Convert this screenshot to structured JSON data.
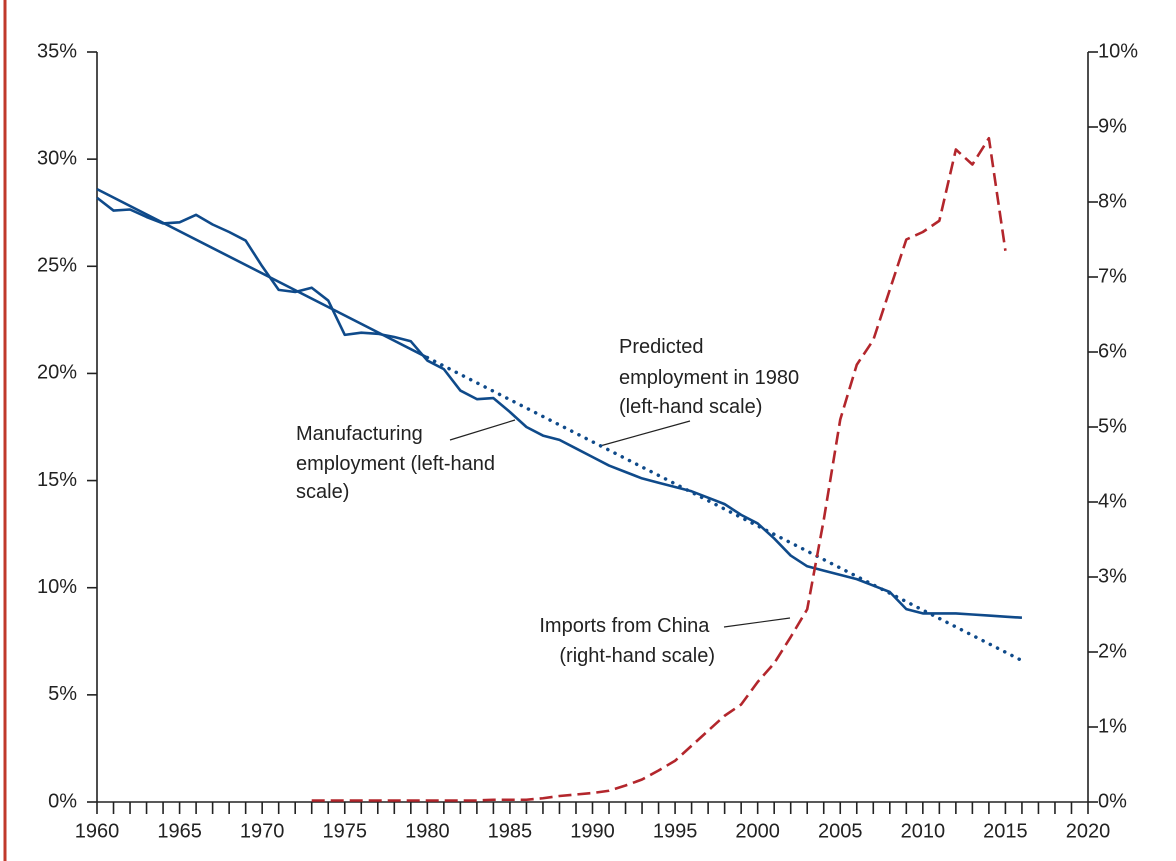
{
  "chart_data": {
    "type": "line",
    "annotations": [
      [
        "Manufacturing",
        "employment (left-hand",
        "scale)"
      ],
      [
        "Predicted",
        "employment in 1980",
        "(left-hand scale)"
      ],
      [
        "Imports from China",
        "(right-hand scale)"
      ]
    ],
    "series": [
      {
        "color": "#0f4a8a",
        "dash": "solid",
        "axis": "y",
        "x": [
          1960,
          1961,
          1962,
          1963,
          1964,
          1965,
          1966,
          1967,
          1968,
          1969,
          1970,
          1971,
          1972,
          1973,
          1974,
          1975,
          1976,
          1977,
          1978,
          1979,
          1980,
          1981,
          1982,
          1983,
          1984,
          1985,
          1986,
          1987,
          1988,
          1989,
          1990,
          1991,
          1992,
          1993,
          1994,
          1995,
          1996,
          1997,
          1998,
          1999,
          2000,
          2001,
          2002,
          2003,
          2004,
          2005,
          2006,
          2007,
          2008,
          2009,
          2010,
          2011,
          2012,
          2013,
          2014,
          2015,
          2016
        ],
        "values": [
          28.2,
          27.6,
          27.65,
          27.3,
          27.0,
          27.05,
          27.4,
          26.95,
          26.6,
          26.2,
          25.0,
          23.9,
          23.8,
          24.0,
          23.4,
          21.8,
          21.9,
          21.85,
          21.7,
          21.5,
          20.6,
          20.2,
          19.2,
          18.8,
          18.85,
          18.2,
          17.5,
          17.1,
          16.9,
          16.5,
          16.1,
          15.7,
          15.4,
          15.1,
          14.9,
          14.7,
          14.5,
          14.2,
          13.9,
          13.4,
          13.0,
          12.3,
          11.5,
          11.0,
          10.8,
          10.6,
          10.4,
          10.1,
          9.8,
          9.0,
          8.8,
          8.8,
          8.8,
          8.75,
          8.7,
          8.65,
          8.6
        ]
      },
      {
        "color": "#0f4a8a",
        "dash": "solid",
        "axis": "y",
        "x": [
          1960,
          1980
        ],
        "values": [
          28.6,
          20.74
        ]
      },
      {
        "color": "#0f4a8a",
        "dash": "dotted",
        "axis": "y",
        "x": [
          1980,
          2016
        ],
        "values": [
          20.74,
          6.6
        ]
      },
      {
        "color": "#b3262c",
        "dash": "dashed",
        "axis": "y2",
        "x": [
          1973,
          1974,
          1975,
          1976,
          1977,
          1978,
          1979,
          1980,
          1981,
          1982,
          1983,
          1984,
          1985,
          1986,
          1987,
          1988,
          1989,
          1990,
          1991,
          1992,
          1993,
          1994,
          1995,
          1996,
          1997,
          1998,
          1999,
          2000,
          2001,
          2002,
          2003,
          2004,
          2005,
          2006,
          2007,
          2008,
          2009,
          2010,
          2011,
          2012,
          2013,
          2014,
          2015
        ],
        "values": [
          0.02,
          0.02,
          0.02,
          0.02,
          0.02,
          0.02,
          0.02,
          0.02,
          0.02,
          0.02,
          0.02,
          0.03,
          0.03,
          0.03,
          0.05,
          0.08,
          0.1,
          0.12,
          0.15,
          0.22,
          0.3,
          0.42,
          0.55,
          0.75,
          0.95,
          1.15,
          1.3,
          1.6,
          1.85,
          2.2,
          2.57,
          3.76,
          5.1,
          5.83,
          6.16,
          6.83,
          7.5,
          7.6,
          7.75,
          8.7,
          8.5,
          8.85,
          7.35
        ]
      }
    ],
    "xlim": [
      1960,
      2020
    ],
    "xticks": [
      1960,
      1965,
      1970,
      1975,
      1980,
      1985,
      1990,
      1995,
      2000,
      2005,
      2010,
      2015,
      2020
    ],
    "ylim": [
      0,
      35
    ],
    "yticks": [
      {
        "value": 0,
        "label": "0%"
      },
      {
        "value": 5,
        "label": "5%"
      },
      {
        "value": 10,
        "label": "10%"
      },
      {
        "value": 15,
        "label": "15%"
      },
      {
        "value": 20,
        "label": "20%"
      },
      {
        "value": 25,
        "label": "25%"
      },
      {
        "value": 30,
        "label": "30%"
      },
      {
        "value": 35,
        "label": "35%"
      }
    ],
    "y2lim": [
      0,
      10
    ],
    "y2ticks": [
      {
        "value": 0,
        "label": "0%"
      },
      {
        "value": 1,
        "label": "1%"
      },
      {
        "value": 2,
        "label": "2%"
      },
      {
        "value": 3,
        "label": "3%"
      },
      {
        "value": 4,
        "label": "4%"
      },
      {
        "value": 5,
        "label": "5%"
      },
      {
        "value": 6,
        "label": "6%"
      },
      {
        "value": 7,
        "label": "7%"
      },
      {
        "value": 8,
        "label": "8%"
      },
      {
        "value": 9,
        "label": "9%"
      },
      {
        "value": 10,
        "label": "10%"
      }
    ]
  }
}
